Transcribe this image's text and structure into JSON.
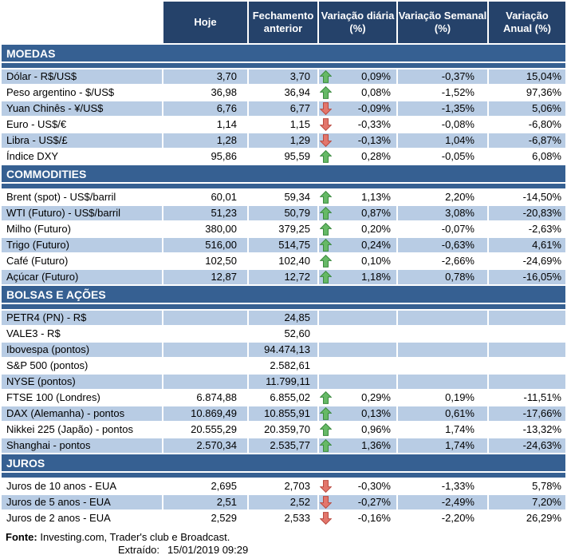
{
  "colors": {
    "header_bg": "#25426A",
    "section_bg": "#366092",
    "stripe_bg": "#B8CCE4",
    "row_white_bg": "#FFFFFF",
    "header_text": "#FFFFFF",
    "body_text": "#000000",
    "up_arrow_fill": "#66B966",
    "up_arrow_border": "#3B8A3F",
    "down_arrow_fill": "#E3766C",
    "down_arrow_border": "#B94A40"
  },
  "chart_data": {
    "type": "table",
    "columns": [
      "",
      "Hoje",
      "Fechamento anterior",
      "Variação diária (%)",
      "Variação Semanal (%)",
      "Variação Anual (%)"
    ],
    "columns_display": [
      "Hoje",
      "Fechamento\nanterior",
      "Variação diária\n(%)",
      "Variação Semanal\n(%)",
      "Variação\nAnual (%)"
    ],
    "sections": [
      {
        "id": "moedas",
        "title": "MOEDAS",
        "rows": [
          {
            "label": "Dólar - R$/US$",
            "hoje": "3,70",
            "fechamento_anterior": "3,70",
            "arrow": "up",
            "variacao_diaria": "0,09%",
            "variacao_semanal": "-0,37%",
            "variacao_anual": "15,04%"
          },
          {
            "label": "Peso argentino - $/US$",
            "hoje": "36,98",
            "fechamento_anterior": "36,94",
            "arrow": "up",
            "variacao_diaria": "0,08%",
            "variacao_semanal": "-1,52%",
            "variacao_anual": "97,36%"
          },
          {
            "label": "Yuan Chinês - ¥/US$",
            "hoje": "6,76",
            "fechamento_anterior": "6,77",
            "arrow": "down",
            "variacao_diaria": "-0,09%",
            "variacao_semanal": "-1,35%",
            "variacao_anual": "5,06%"
          },
          {
            "label": "Euro - US$/€",
            "hoje": "1,14",
            "fechamento_anterior": "1,15",
            "arrow": "down",
            "variacao_diaria": "-0,33%",
            "variacao_semanal": "-0,08%",
            "variacao_anual": "-6,80%"
          },
          {
            "label": "Libra - US$/£",
            "hoje": "1,28",
            "fechamento_anterior": "1,29",
            "arrow": "down",
            "variacao_diaria": "-0,13%",
            "variacao_semanal": "1,04%",
            "variacao_anual": "-6,87%"
          },
          {
            "label": "Índice DXY",
            "hoje": "95,86",
            "fechamento_anterior": "95,59",
            "arrow": "up",
            "variacao_diaria": "0,28%",
            "variacao_semanal": "-0,05%",
            "variacao_anual": "6,08%"
          }
        ]
      },
      {
        "id": "commodities",
        "title": "COMMODITIES",
        "rows": [
          {
            "label": "Brent (spot) - US$/barril",
            "hoje": "60,01",
            "fechamento_anterior": "59,34",
            "arrow": "up",
            "variacao_diaria": "1,13%",
            "variacao_semanal": "2,20%",
            "variacao_anual": "-14,50%"
          },
          {
            "label": "WTI (Futuro) - US$/barril",
            "hoje": "51,23",
            "fechamento_anterior": "50,79",
            "arrow": "up",
            "variacao_diaria": "0,87%",
            "variacao_semanal": "3,08%",
            "variacao_anual": "-20,83%"
          },
          {
            "label": "Milho (Futuro)",
            "hoje": "380,00",
            "fechamento_anterior": "379,25",
            "arrow": "up",
            "variacao_diaria": "0,20%",
            "variacao_semanal": "-0,07%",
            "variacao_anual": "-2,63%"
          },
          {
            "label": "Trigo (Futuro)",
            "hoje": "516,00",
            "fechamento_anterior": "514,75",
            "arrow": "up",
            "variacao_diaria": "0,24%",
            "variacao_semanal": "-0,63%",
            "variacao_anual": "4,61%"
          },
          {
            "label": "Café (Futuro)",
            "hoje": "102,50",
            "fechamento_anterior": "102,40",
            "arrow": "up",
            "variacao_diaria": "0,10%",
            "variacao_semanal": "-2,66%",
            "variacao_anual": "-24,69%"
          },
          {
            "label": "Açúcar (Futuro)",
            "hoje": "12,87",
            "fechamento_anterior": "12,72",
            "arrow": "up",
            "variacao_diaria": "1,18%",
            "variacao_semanal": "0,78%",
            "variacao_anual": "-16,05%"
          }
        ]
      },
      {
        "id": "bolsas-e-acoes",
        "title": "BOLSAS E AÇÕES",
        "rows": [
          {
            "label": "PETR4 (PN) - R$",
            "hoje": "",
            "fechamento_anterior": "24,85",
            "arrow": "",
            "variacao_diaria": "",
            "variacao_semanal": "",
            "variacao_anual": ""
          },
          {
            "label": "VALE3 - R$",
            "hoje": "",
            "fechamento_anterior": "52,60",
            "arrow": "",
            "variacao_diaria": "",
            "variacao_semanal": "",
            "variacao_anual": ""
          },
          {
            "label": "Ibovespa (pontos)",
            "hoje": "",
            "fechamento_anterior": "94.474,13",
            "arrow": "",
            "variacao_diaria": "",
            "variacao_semanal": "",
            "variacao_anual": ""
          },
          {
            "label": "S&P 500 (pontos)",
            "hoje": "",
            "fechamento_anterior": "2.582,61",
            "arrow": "",
            "variacao_diaria": "",
            "variacao_semanal": "",
            "variacao_anual": ""
          },
          {
            "label": "NYSE (pontos)",
            "hoje": "",
            "fechamento_anterior": "11.799,11",
            "arrow": "",
            "variacao_diaria": "",
            "variacao_semanal": "",
            "variacao_anual": ""
          },
          {
            "label": "FTSE 100 (Londres)",
            "hoje": "6.874,88",
            "fechamento_anterior": "6.855,02",
            "arrow": "up",
            "variacao_diaria": "0,29%",
            "variacao_semanal": "0,19%",
            "variacao_anual": "-11,51%"
          },
          {
            "label": "DAX (Alemanha) - pontos",
            "hoje": "10.869,49",
            "fechamento_anterior": "10.855,91",
            "arrow": "up",
            "variacao_diaria": "0,13%",
            "variacao_semanal": "0,61%",
            "variacao_anual": "-17,66%"
          },
          {
            "label": "Nikkei 225 (Japão) - pontos",
            "hoje": "20.555,29",
            "fechamento_anterior": "20.359,70",
            "arrow": "up",
            "variacao_diaria": "0,96%",
            "variacao_semanal": "1,74%",
            "variacao_anual": "-13,32%"
          },
          {
            "label": "Shanghai - pontos",
            "hoje": "2.570,34",
            "fechamento_anterior": "2.535,77",
            "arrow": "up",
            "variacao_diaria": "1,36%",
            "variacao_semanal": "1,74%",
            "variacao_anual": "-24,63%"
          }
        ]
      },
      {
        "id": "juros",
        "title": "JUROS",
        "rows": [
          {
            "label": "Juros de 10 anos - EUA",
            "hoje": "2,695",
            "fechamento_anterior": "2,703",
            "arrow": "down",
            "variacao_diaria": "-0,30%",
            "variacao_semanal": "-1,33%",
            "variacao_anual": "5,78%"
          },
          {
            "label": "Juros de 5 anos - EUA",
            "hoje": "2,51",
            "fechamento_anterior": "2,52",
            "arrow": "down",
            "variacao_diaria": "-0,27%",
            "variacao_semanal": "-2,49%",
            "variacao_anual": "7,20%"
          },
          {
            "label": "Juros de 2 anos - EUA",
            "hoje": "2,529",
            "fechamento_anterior": "2,533",
            "arrow": "down",
            "variacao_diaria": "-0,16%",
            "variacao_semanal": "-2,20%",
            "variacao_anual": "26,29%"
          }
        ]
      }
    ]
  },
  "footer": {
    "fonte_label": "Fonte:",
    "fonte_text": "Investing.com, Trader's club e Broadcast.",
    "extraido_label": "Extraído:",
    "extraido_value": "15/01/2019 09:29"
  }
}
